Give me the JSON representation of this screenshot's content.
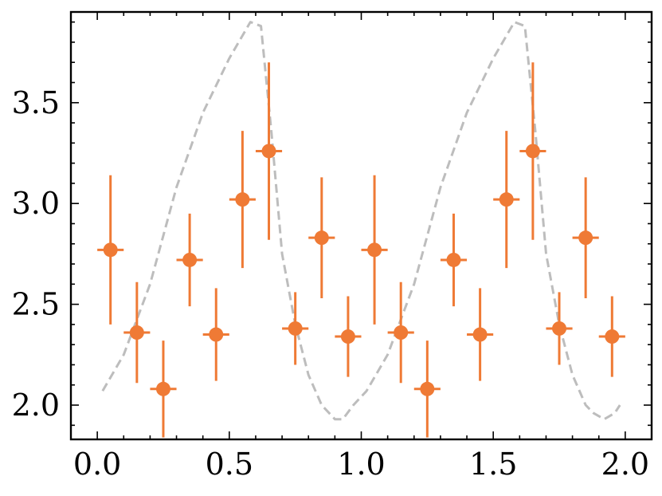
{
  "chart_data": {
    "type": "scatter",
    "title": "",
    "xlabel": "",
    "ylabel": "",
    "xlim": [
      -0.1,
      2.1
    ],
    "ylim": [
      1.83,
      3.95
    ],
    "grid": false,
    "legend": "none",
    "x_ticks": [
      {
        "value": 0.0,
        "label": "0.0"
      },
      {
        "value": 0.5,
        "label": "0.5"
      },
      {
        "value": 1.0,
        "label": "1.0"
      },
      {
        "value": 1.5,
        "label": "1.5"
      },
      {
        "value": 2.0,
        "label": "2.0"
      }
    ],
    "y_ticks": [
      {
        "value": 2.0,
        "label": "2.0"
      },
      {
        "value": 2.5,
        "label": "2.5"
      },
      {
        "value": 3.0,
        "label": "3.0"
      },
      {
        "value": 3.5,
        "label": "3.5"
      }
    ],
    "x_minor_step": 0.1,
    "y_minor_step": 0.1,
    "series": [
      {
        "kind": "errorbar",
        "color": "#ef7a35",
        "x": [
          0.05,
          0.15,
          0.25,
          0.35,
          0.45,
          0.55,
          0.65,
          0.75,
          0.85,
          0.95,
          1.05,
          1.15,
          1.25,
          1.35,
          1.45,
          1.55,
          1.65,
          1.75,
          1.85,
          1.95
        ],
        "y": [
          2.77,
          2.36,
          2.08,
          2.72,
          2.35,
          3.02,
          3.26,
          2.38,
          2.83,
          2.34,
          2.77,
          2.36,
          2.08,
          2.72,
          2.35,
          3.02,
          3.26,
          2.38,
          2.83,
          2.34
        ],
        "yerr": [
          0.37,
          0.25,
          0.24,
          0.23,
          0.23,
          0.34,
          0.44,
          0.18,
          0.3,
          0.2,
          0.37,
          0.25,
          0.24,
          0.23,
          0.23,
          0.34,
          0.44,
          0.18,
          0.3,
          0.2
        ],
        "xerr": 0.05
      },
      {
        "kind": "line",
        "style": "dashed",
        "color": "#bdbdbd",
        "x": [
          0.02,
          0.1,
          0.2,
          0.3,
          0.4,
          0.5,
          0.58,
          0.62,
          0.66,
          0.7,
          0.75,
          0.8,
          0.85,
          0.9,
          0.93,
          0.97,
          1.02,
          1.1,
          1.2,
          1.3,
          1.4,
          1.5,
          1.58,
          1.62,
          1.66,
          1.7,
          1.75,
          1.8,
          1.85,
          1.88,
          1.92,
          1.96,
          1.98
        ],
        "y": [
          2.07,
          2.25,
          2.6,
          3.08,
          3.45,
          3.72,
          3.9,
          3.88,
          3.35,
          2.75,
          2.4,
          2.15,
          2.0,
          1.93,
          1.93,
          2.0,
          2.07,
          2.25,
          2.6,
          3.08,
          3.45,
          3.72,
          3.9,
          3.88,
          3.35,
          2.75,
          2.4,
          2.15,
          2.0,
          1.96,
          1.93,
          1.96,
          2.0
        ]
      }
    ]
  }
}
